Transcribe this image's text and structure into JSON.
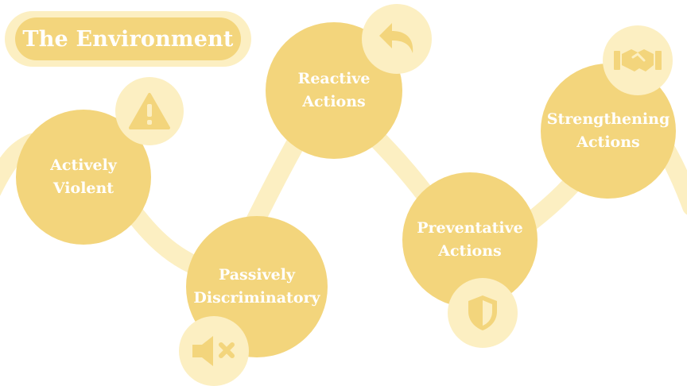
{
  "title": "The Environment",
  "colors": {
    "node_fill": "#f3d57c",
    "badge_fill": "#fcefc2",
    "path_stroke": "#fcefc2",
    "text": "#ffffff"
  },
  "nodes": [
    {
      "line1": "Actively",
      "line2": "Violent",
      "icon": "warning-icon"
    },
    {
      "line1": "Passively",
      "line2": "Discriminatory",
      "icon": "muted-speaker-icon"
    },
    {
      "line1": "Reactive",
      "line2": "Actions",
      "icon": "undo-arrow-icon"
    },
    {
      "line1": "Preventative",
      "line2": "Actions",
      "icon": "shield-icon"
    },
    {
      "line1": "Strengthening",
      "line2": "Actions",
      "icon": "handshake-icon"
    }
  ]
}
